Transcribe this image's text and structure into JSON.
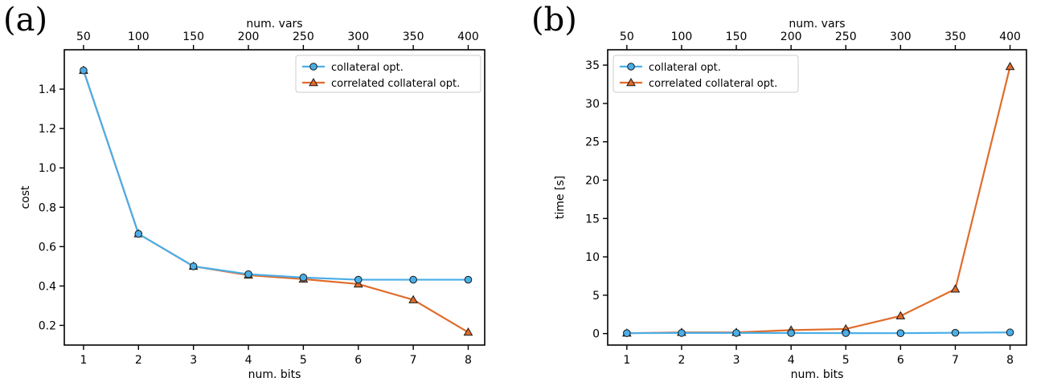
{
  "colors": {
    "blue": "#4aaee8",
    "orange": "#e06c2a"
  },
  "chart_data": [
    {
      "panel_label": "(a)",
      "type": "line",
      "xlabel": "num. bits",
      "ylabel": "cost",
      "top_xlabel": "num. vars",
      "x": [
        1,
        2,
        3,
        4,
        5,
        6,
        7,
        8
      ],
      "top_x_ticks": [
        "50",
        "100",
        "150",
        "200",
        "250",
        "300",
        "350",
        "400"
      ],
      "xlim": [
        0.65,
        8.3
      ],
      "ylim": [
        0.1,
        1.6
      ],
      "yticks": [
        0.2,
        0.4,
        0.6,
        0.8,
        1.0,
        1.2,
        1.4
      ],
      "ytick_labels": [
        "0.2",
        "0.4",
        "0.6",
        "0.8",
        "1.0",
        "1.2",
        "1.4"
      ],
      "grid": false,
      "legend_position": "top-right",
      "series": [
        {
          "name": "collateral opt.",
          "marker": "circle",
          "color": "#4aaee8",
          "values": [
            1.495,
            0.665,
            0.5,
            0.46,
            0.443,
            0.432,
            0.432,
            0.432
          ]
        },
        {
          "name": "correlated collateral opt.",
          "marker": "triangle",
          "color": "#e06c2a",
          "values": [
            1.495,
            0.665,
            0.5,
            0.455,
            0.435,
            0.41,
            0.33,
            0.165
          ]
        }
      ]
    },
    {
      "panel_label": "(b)",
      "type": "line",
      "xlabel": "num. bits",
      "ylabel": "time [s]",
      "top_xlabel": "num. vars",
      "x": [
        1,
        2,
        3,
        4,
        5,
        6,
        7,
        8
      ],
      "top_x_ticks": [
        "50",
        "100",
        "150",
        "200",
        "250",
        "300",
        "350",
        "400"
      ],
      "xlim": [
        0.65,
        8.3
      ],
      "ylim": [
        -1.5,
        37
      ],
      "yticks": [
        0,
        5,
        10,
        15,
        20,
        25,
        30,
        35
      ],
      "ytick_labels": [
        "0",
        "5",
        "10",
        "15",
        "20",
        "25",
        "30",
        "35"
      ],
      "grid": false,
      "legend_position": "top-left",
      "series": [
        {
          "name": "collateral opt.",
          "marker": "circle",
          "color": "#4aaee8",
          "values": [
            0.05,
            0.08,
            0.08,
            0.07,
            0.06,
            0.05,
            0.1,
            0.15
          ]
        },
        {
          "name": "correlated collateral opt.",
          "marker": "triangle",
          "color": "#e06c2a",
          "values": [
            0.05,
            0.15,
            0.15,
            0.45,
            0.6,
            2.3,
            5.8,
            34.8
          ]
        }
      ]
    }
  ]
}
